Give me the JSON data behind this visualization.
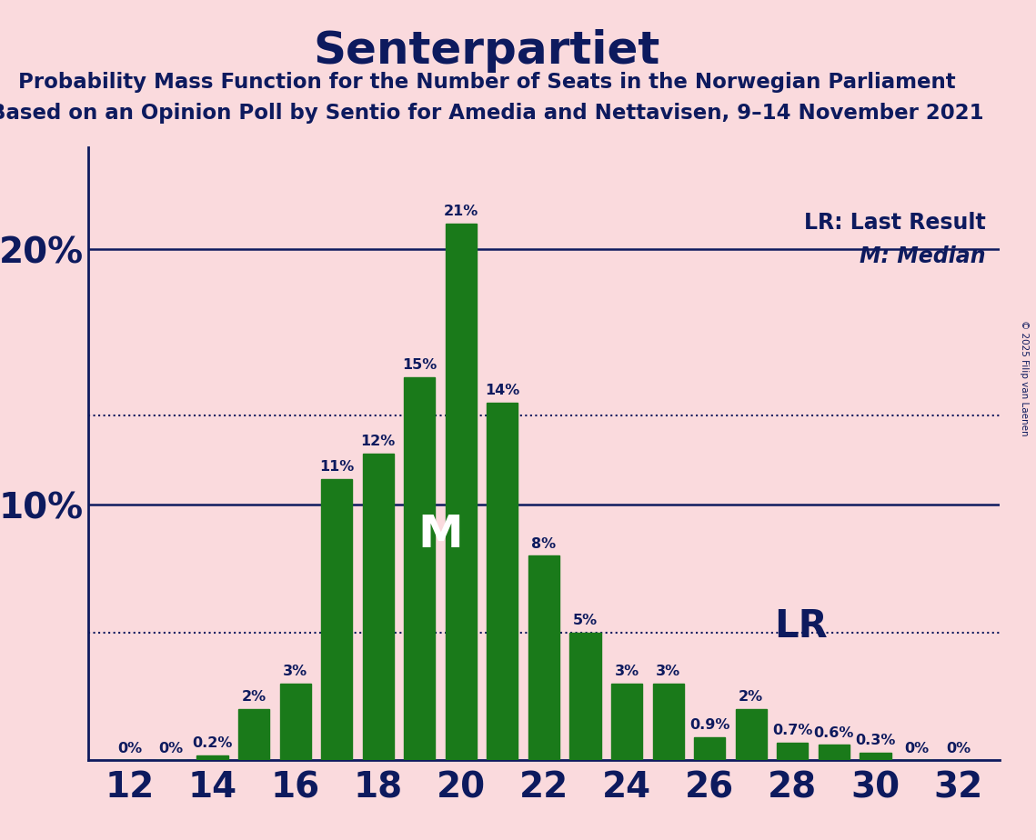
{
  "title": "Senterpartiet",
  "subtitle1": "Probability Mass Function for the Number of Seats in the Norwegian Parliament",
  "subtitle2": "Based on an Opinion Poll by Sentio for Amedia and Nettavisen, 9–14 November 2021",
  "copyright": "© 2025 Filip van Laenen",
  "seats": [
    12,
    13,
    14,
    15,
    16,
    17,
    18,
    19,
    20,
    21,
    22,
    23,
    24,
    25,
    26,
    27,
    28,
    29,
    30,
    31,
    32
  ],
  "probabilities": [
    0.0,
    0.0,
    0.2,
    2.0,
    3.0,
    11.0,
    12.0,
    15.0,
    21.0,
    14.0,
    8.0,
    5.0,
    3.0,
    3.0,
    0.9,
    2.0,
    0.7,
    0.6,
    0.3,
    0.0,
    0.0
  ],
  "bar_labels": [
    "0%",
    "0%",
    "0.2%",
    "2%",
    "3%",
    "11%",
    "12%",
    "15%",
    "21%",
    "14%",
    "8%",
    "5%",
    "3%",
    "3%",
    "0.9%",
    "2%",
    "0.7%",
    "0.6%",
    "0.3%",
    "0%",
    "0%"
  ],
  "bar_color": "#1a7a1a",
  "background_color": "#fadadd",
  "text_color": "#0d1a5e",
  "median_seat": 20,
  "lr_seat": 27,
  "ylim": [
    0,
    24
  ],
  "xlim": [
    11.0,
    33.0
  ],
  "xlabel_seats": [
    12,
    14,
    16,
    18,
    20,
    22,
    24,
    26,
    28,
    30,
    32
  ],
  "solid_hlines": [
    10.0,
    20.0
  ],
  "dotted_hlines": [
    5.0,
    13.5
  ],
  "bar_width": 0.75,
  "median_label": "M",
  "lr_label": "LR",
  "lr_legend": "LR: Last Result",
  "m_legend": "M: Median"
}
